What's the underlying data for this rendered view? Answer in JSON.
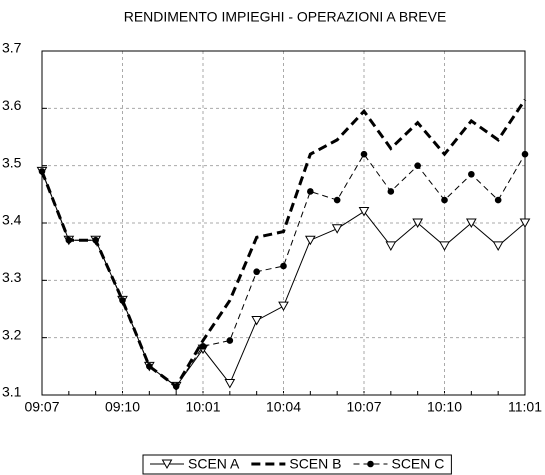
{
  "chart_data": {
    "type": "line",
    "title": "RENDIMENTO IMPIEGHI - OPERAZIONI A BREVE",
    "categories": [
      "09:07",
      null,
      null,
      "09:10",
      null,
      null,
      "10:01",
      null,
      null,
      "10:04",
      null,
      null,
      "10:07",
      null,
      null,
      "10:10",
      null,
      null,
      "11:01"
    ],
    "series": [
      {
        "name": "SCEN A",
        "color": "#000000",
        "line_style": "solid",
        "line_width": 1,
        "marker": "triangle-down",
        "values": [
          3.49,
          3.37,
          3.37,
          3.265,
          3.15,
          3.115,
          3.18,
          3.12,
          3.23,
          3.255,
          3.37,
          3.39,
          3.42,
          3.36,
          3.4,
          3.36,
          3.4,
          3.36,
          3.4
        ]
      },
      {
        "name": "SCEN B",
        "color": "#000000",
        "line_style": "dashed",
        "line_width": 3,
        "marker": "none",
        "values": [
          3.49,
          3.37,
          3.37,
          3.265,
          3.15,
          3.115,
          3.195,
          3.265,
          3.375,
          3.385,
          3.52,
          3.545,
          3.595,
          3.53,
          3.575,
          3.52,
          3.578,
          3.545,
          3.615
        ]
      },
      {
        "name": "SCEN C",
        "color": "#000000",
        "line_style": "dashed",
        "line_width": 1,
        "marker": "circle",
        "values": [
          3.49,
          3.37,
          3.37,
          3.265,
          3.15,
          3.115,
          3.185,
          3.195,
          3.315,
          3.325,
          3.455,
          3.44,
          3.52,
          3.455,
          3.5,
          3.44,
          3.485,
          3.44,
          3.52
        ]
      }
    ],
    "ylim": [
      3.1,
      3.7
    ],
    "yticks": [
      3.1,
      3.2,
      3.3,
      3.4,
      3.5,
      3.6,
      3.7
    ],
    "grid": true,
    "legend": "bottom"
  }
}
